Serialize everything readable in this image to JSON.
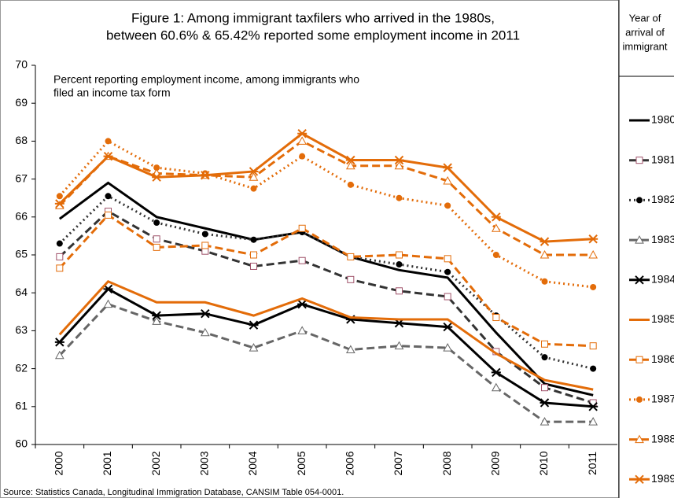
{
  "chart_data": {
    "type": "line",
    "title": [
      "Figure 1: Among immigrant taxfilers who arrived in the 1980s,",
      "between 60.6% & 65.42% reported some employment income in 2011"
    ],
    "annotation": [
      "Percent reporting employment income, among immigrants who",
      "filed an income tax form"
    ],
    "source": "Source: Statistics Canada, Longitudinal Immigration Database, CANSIM Table 054-0001.",
    "legend_title": [
      "Year of",
      "arrival of",
      "immigrant"
    ],
    "categories": [
      "2000",
      "2001",
      "2002",
      "2003",
      "2004",
      "2005",
      "2006",
      "2007",
      "2008",
      "2009",
      "2010",
      "2011"
    ],
    "ylim": [
      60,
      70
    ],
    "yticks": [
      60,
      61,
      62,
      63,
      64,
      65,
      66,
      67,
      68,
      69,
      70
    ],
    "legend": "right",
    "series": [
      {
        "name": "1980",
        "color": "#000000",
        "dash": "solid",
        "marker": "none",
        "values": [
          65.95,
          66.9,
          66.0,
          65.7,
          65.4,
          65.6,
          64.95,
          64.6,
          64.4,
          62.95,
          61.6,
          61.3
        ]
      },
      {
        "name": "1981",
        "color": "#333333",
        "dash": "dashed",
        "marker": "square",
        "values": [
          64.95,
          66.15,
          65.42,
          65.1,
          64.7,
          64.85,
          64.35,
          64.05,
          63.9,
          62.45,
          61.5,
          61.1
        ]
      },
      {
        "name": "1982",
        "color": "#333333",
        "dash": "dotted",
        "marker": "circle",
        "values": [
          65.3,
          66.55,
          65.85,
          65.55,
          65.4,
          65.6,
          64.95,
          64.75,
          64.55,
          63.4,
          62.3,
          62.0
        ]
      },
      {
        "name": "1983",
        "color": "#666666",
        "dash": "dashed",
        "marker": "triangle",
        "values": [
          62.35,
          63.7,
          63.25,
          62.95,
          62.55,
          63.0,
          62.5,
          62.6,
          62.55,
          61.5,
          60.6,
          60.6
        ]
      },
      {
        "name": "1984",
        "color": "#000000",
        "dash": "solid",
        "marker": "star",
        "values": [
          62.7,
          64.1,
          63.4,
          63.45,
          63.15,
          63.7,
          63.3,
          63.2,
          63.1,
          61.9,
          61.1,
          61.0
        ]
      },
      {
        "name": "1985",
        "color": "#e36c09",
        "dash": "solid",
        "marker": "none",
        "values": [
          62.9,
          64.3,
          63.75,
          63.75,
          63.4,
          63.85,
          63.35,
          63.3,
          63.3,
          62.4,
          61.7,
          61.45
        ]
      },
      {
        "name": "1986",
        "color": "#e36c09",
        "dash": "dashed",
        "marker": "square",
        "values": [
          64.65,
          66.05,
          65.2,
          65.25,
          65.0,
          65.7,
          64.95,
          65.0,
          64.9,
          63.35,
          62.65,
          62.6
        ]
      },
      {
        "name": "1987",
        "color": "#e36c09",
        "dash": "dotted",
        "marker": "circle",
        "values": [
          66.55,
          68.0,
          67.3,
          67.15,
          66.75,
          67.6,
          66.85,
          66.5,
          66.3,
          65.0,
          64.3,
          64.15
        ]
      },
      {
        "name": "1988",
        "color": "#e36c09",
        "dash": "dashed",
        "marker": "triangle",
        "values": [
          66.3,
          67.6,
          67.15,
          67.1,
          67.05,
          68.0,
          67.35,
          67.35,
          66.95,
          65.7,
          65.0,
          65.0
        ]
      },
      {
        "name": "1989",
        "color": "#e36c09",
        "dash": "solid",
        "marker": "star",
        "values": [
          66.35,
          67.6,
          67.05,
          67.1,
          67.2,
          68.2,
          67.5,
          67.5,
          67.3,
          66.0,
          65.35,
          65.42
        ]
      }
    ]
  }
}
